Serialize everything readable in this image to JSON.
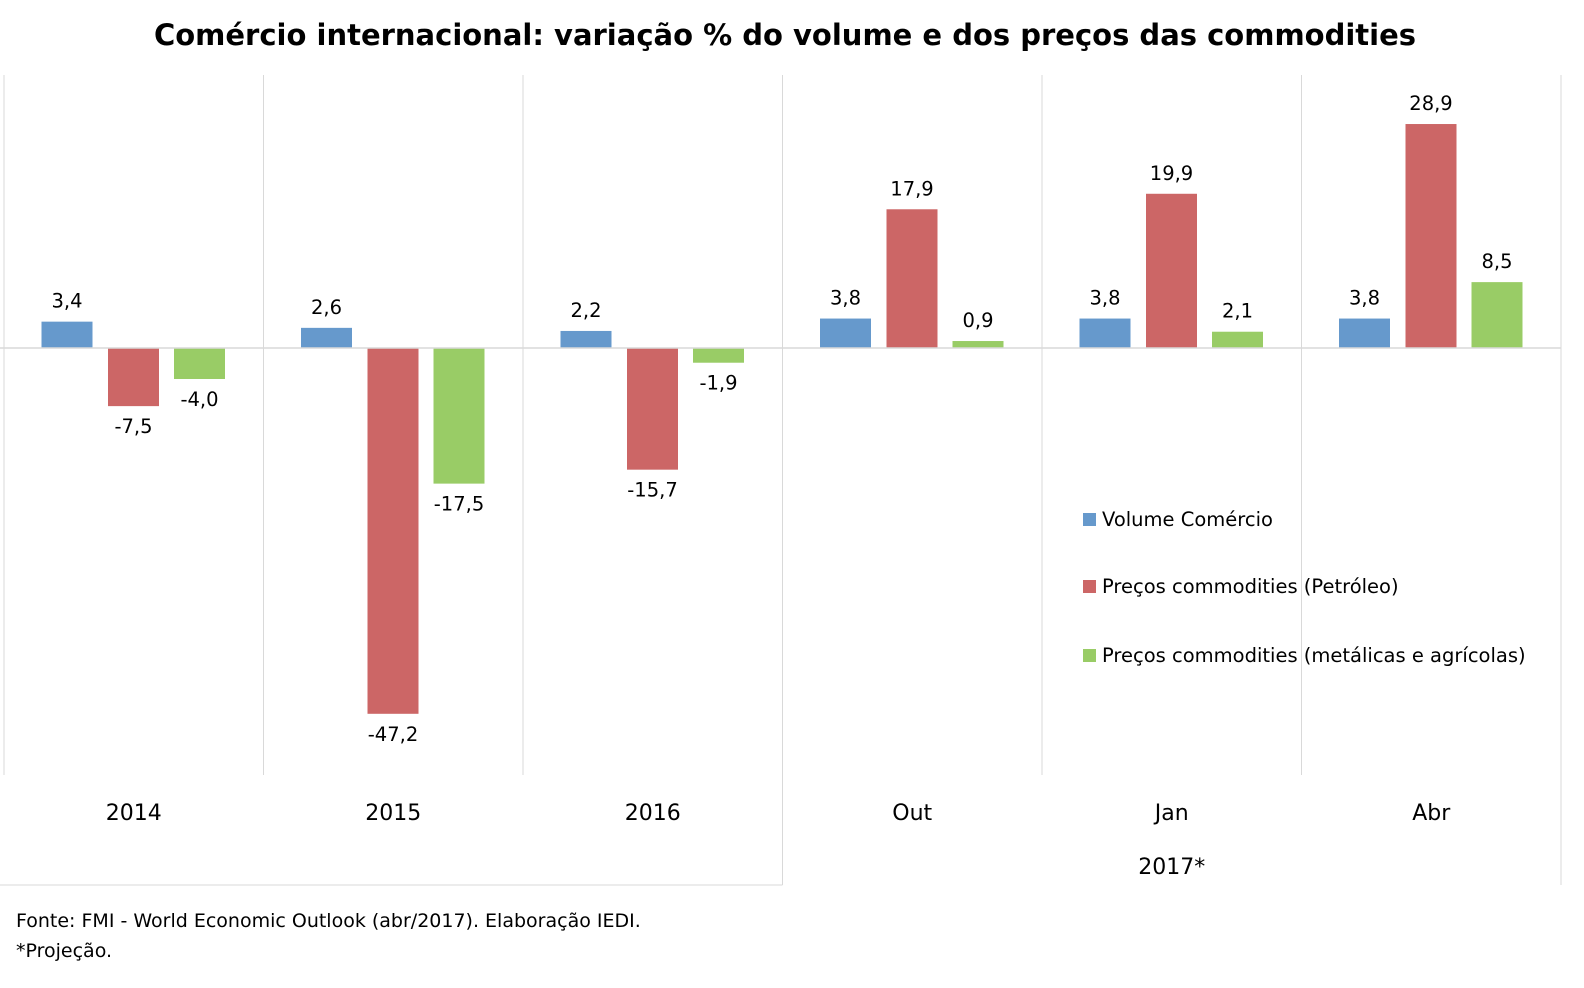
{
  "chart_data": {
    "type": "bar",
    "title": "Comércio internacional: variação % do volume e dos preços das commodities",
    "categories": [
      "2014",
      "2015",
      "2016",
      "Out",
      "Jan",
      "Abr"
    ],
    "group_label": {
      "text": "2017*",
      "categories": [
        "Out",
        "Jan",
        "Abr"
      ]
    },
    "series": [
      {
        "name": "Volume Comércio",
        "color": "#6699CC",
        "values": [
          3.4,
          2.6,
          2.2,
          3.8,
          3.8,
          3.8
        ],
        "labels": [
          "3,4",
          "2,6",
          "2,2",
          "3,8",
          "3,8",
          "3,8"
        ]
      },
      {
        "name": "Preços commodities (Petróleo)",
        "color": "#CC6666",
        "values": [
          -7.5,
          -47.2,
          -15.7,
          17.9,
          19.9,
          28.9
        ],
        "labels": [
          "-7,5",
          "-47,2",
          "-15,7",
          "17,9",
          "19,9",
          "28,9"
        ]
      },
      {
        "name": "Preços commodities (metálicas e agrícolas)",
        "color": "#99CC66",
        "values": [
          -4.0,
          -17.5,
          -1.9,
          0.9,
          2.1,
          8.5
        ],
        "labels": [
          "-4,0",
          "-17,5",
          "-1,9",
          "0,9",
          "2,1",
          "8,5"
        ]
      }
    ],
    "ylim": [
      -55,
      35
    ],
    "grid": "vertical separators",
    "legend": "right"
  },
  "footnotes": {
    "source": "Fonte: FMI - World Economic Outlook (abr/2017). Elaboração IEDI.",
    "projection": "*Projeção."
  }
}
